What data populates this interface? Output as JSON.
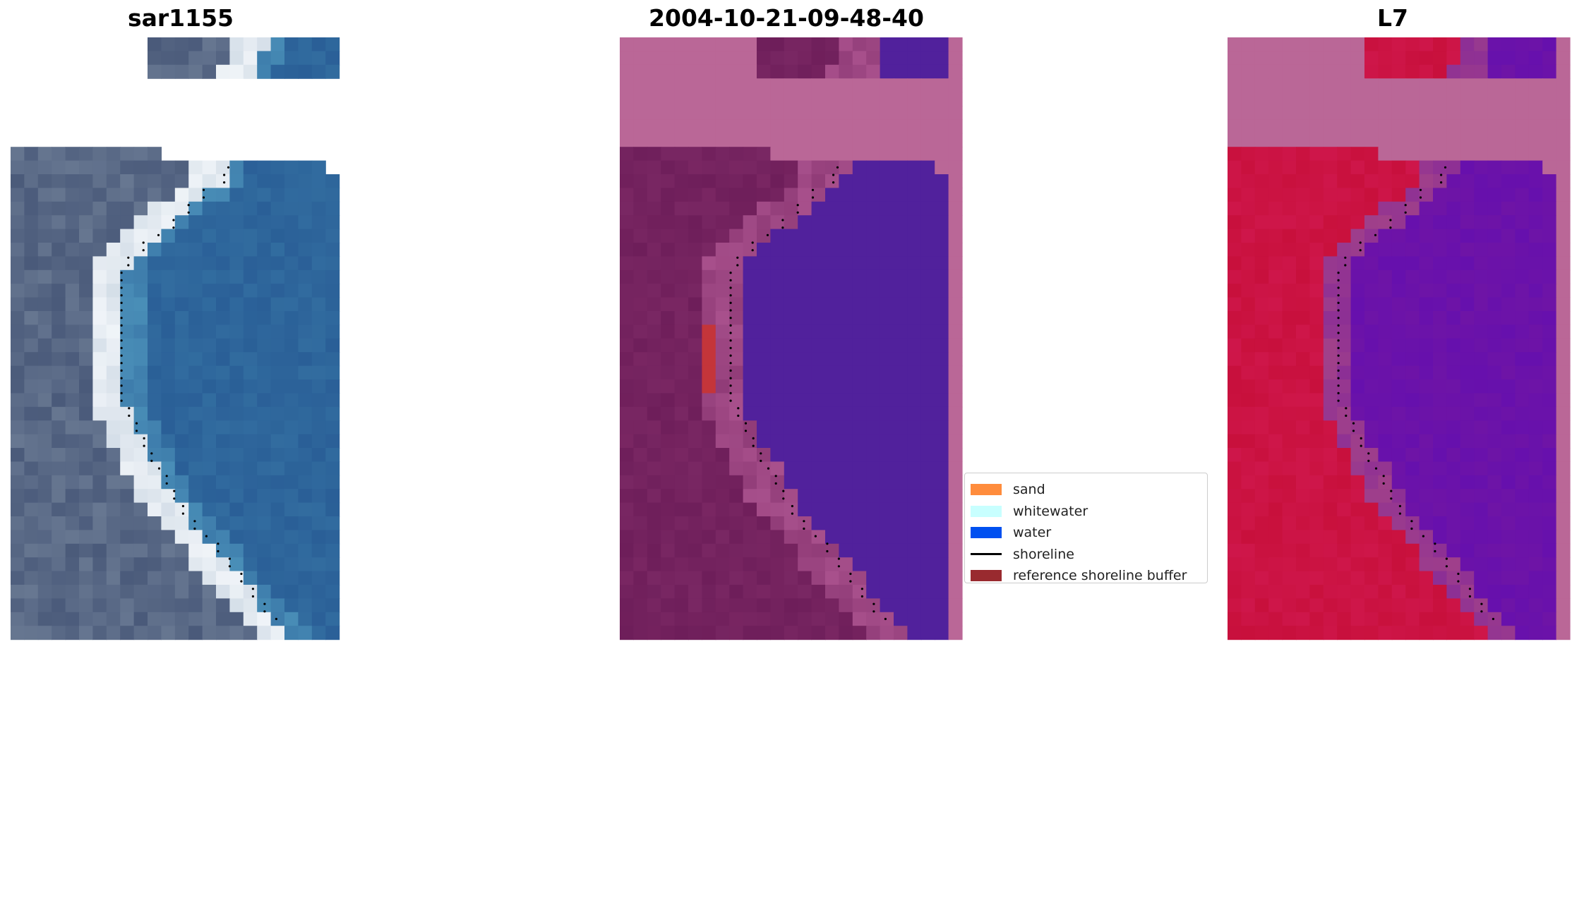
{
  "panels": [
    {
      "title": "sar1155"
    },
    {
      "title": "2004-10-21-09-48-40"
    },
    {
      "title": "L7"
    }
  ],
  "legend": {
    "items": [
      {
        "label": "sand",
        "color": "#ff8c3c",
        "kind": "patch"
      },
      {
        "label": "whitewater",
        "color": "#c8ffff",
        "kind": "patch"
      },
      {
        "label": "water",
        "color": "#0050f0",
        "kind": "patch"
      },
      {
        "label": "shoreline",
        "color": "#000000",
        "kind": "line"
      },
      {
        "label": "reference shoreline buffer",
        "color": "#992a2f",
        "kind": "patch"
      }
    ]
  },
  "colors": {
    "rgb_water": "#2a5f97",
    "rgb_land": "#4a5a7a",
    "rgb_surf": "#f0f4f8",
    "class_nodata": "#ba6797",
    "class_water": "#51219c",
    "class_land": "#6e1e5a",
    "class_buffer": "#c4353a",
    "ndwi_land": "#c8103c",
    "ndwi_water": "#6e14a6",
    "ndwi_nodata": "#ba6797"
  }
}
